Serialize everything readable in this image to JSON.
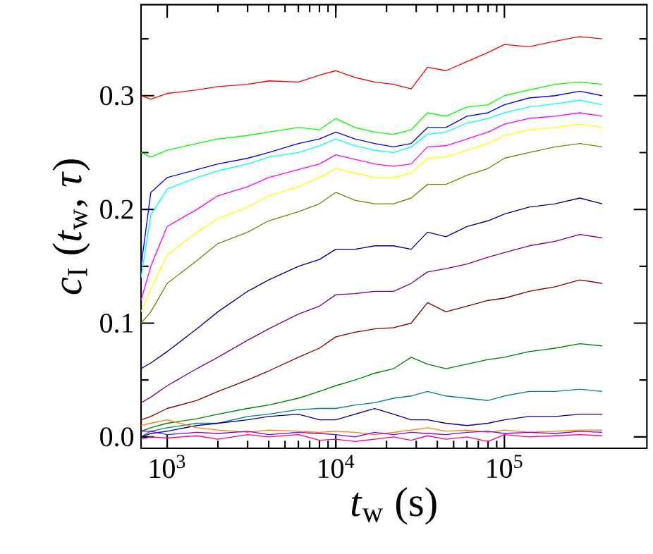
{
  "chart_data": {
    "type": "line",
    "xlabel": "*t*$_{w}$ (s)",
    "ylabel": "*c*$_{I}$ (*t*$_{w}$, *τ*)",
    "log": "x",
    "xlim": [
      700,
      700000
    ],
    "ylim": [
      -0.01,
      0.38
    ],
    "xticks": [
      {
        "value": 1000,
        "label": "10$^{3}$"
      },
      {
        "value": 10000,
        "label": "10$^{4}$"
      },
      {
        "value": 100000,
        "label": "10$^{5}$"
      }
    ],
    "yticks": [
      {
        "value": 0,
        "label": "0.0"
      },
      {
        "value": 0.05,
        "label": null
      },
      0.1,
      {
        "value": 0.15,
        "label": null
      },
      0.2,
      {
        "value": 0.25,
        "label": null
      },
      0.3,
      {
        "value": 0.35,
        "label": null
      }
    ],
    "x": [
      700,
      800,
      1000,
      1500,
      2000,
      3000,
      4000,
      6000,
      8000,
      10000,
      13000,
      17000,
      22000,
      28000,
      35000,
      45000,
      60000,
      80000,
      100000,
      140000,
      200000,
      280000,
      380000
    ],
    "series": [
      {
        "color": "#ff0000",
        "values": [
          0.3,
          0.297,
          0.302,
          0.305,
          0.308,
          0.31,
          0.313,
          0.312,
          0.318,
          0.322,
          0.316,
          0.312,
          0.31,
          0.306,
          0.325,
          0.322,
          0.33,
          0.338,
          0.345,
          0.343,
          0.348,
          0.352,
          0.35
        ]
      },
      {
        "color": "#00ff00",
        "values": [
          0.25,
          0.246,
          0.252,
          0.258,
          0.262,
          0.265,
          0.268,
          0.272,
          0.27,
          0.28,
          0.272,
          0.268,
          0.266,
          0.27,
          0.285,
          0.282,
          0.29,
          0.292,
          0.3,
          0.305,
          0.31,
          0.312,
          0.31
        ]
      },
      {
        "color": "#0000ff",
        "values": [
          0.15,
          0.215,
          0.228,
          0.235,
          0.24,
          0.245,
          0.25,
          0.258,
          0.262,
          0.268,
          0.262,
          0.258,
          0.255,
          0.258,
          0.272,
          0.272,
          0.282,
          0.285,
          0.292,
          0.298,
          0.3,
          0.304,
          0.3
        ]
      },
      {
        "color": "#00ffff",
        "values": [
          0.14,
          0.195,
          0.218,
          0.228,
          0.234,
          0.24,
          0.246,
          0.25,
          0.256,
          0.262,
          0.256,
          0.252,
          0.25,
          0.255,
          0.266,
          0.268,
          0.276,
          0.28,
          0.285,
          0.29,
          0.293,
          0.296,
          0.292
        ]
      },
      {
        "color": "#ff00ff",
        "values": [
          0.12,
          0.15,
          0.185,
          0.2,
          0.212,
          0.22,
          0.228,
          0.235,
          0.24,
          0.248,
          0.244,
          0.24,
          0.238,
          0.24,
          0.255,
          0.256,
          0.262,
          0.268,
          0.275,
          0.28,
          0.282,
          0.285,
          0.282
        ]
      },
      {
        "color": "#ffff00",
        "values": [
          0.11,
          0.13,
          0.16,
          0.18,
          0.192,
          0.202,
          0.212,
          0.22,
          0.228,
          0.236,
          0.232,
          0.228,
          0.228,
          0.232,
          0.245,
          0.246,
          0.252,
          0.258,
          0.265,
          0.27,
          0.272,
          0.275,
          0.272
        ]
      },
      {
        "color": "#808000",
        "values": [
          0.1,
          0.11,
          0.135,
          0.155,
          0.17,
          0.18,
          0.19,
          0.198,
          0.205,
          0.215,
          0.208,
          0.205,
          0.205,
          0.21,
          0.222,
          0.222,
          0.23,
          0.236,
          0.245,
          0.25,
          0.255,
          0.258,
          0.255
        ]
      },
      {
        "color": "#000080",
        "values": [
          0.06,
          0.065,
          0.075,
          0.095,
          0.11,
          0.128,
          0.138,
          0.15,
          0.156,
          0.165,
          0.165,
          0.168,
          0.168,
          0.165,
          0.18,
          0.176,
          0.185,
          0.19,
          0.196,
          0.202,
          0.205,
          0.21,
          0.205
        ]
      },
      {
        "color": "#800080",
        "values": [
          0.03,
          0.035,
          0.045,
          0.06,
          0.07,
          0.085,
          0.095,
          0.108,
          0.115,
          0.125,
          0.126,
          0.128,
          0.128,
          0.135,
          0.145,
          0.148,
          0.152,
          0.158,
          0.162,
          0.168,
          0.172,
          0.178,
          0.175
        ]
      },
      {
        "color": "#800000",
        "values": [
          0.015,
          0.018,
          0.025,
          0.032,
          0.04,
          0.05,
          0.058,
          0.07,
          0.078,
          0.088,
          0.092,
          0.095,
          0.096,
          0.1,
          0.118,
          0.11,
          0.115,
          0.12,
          0.122,
          0.128,
          0.132,
          0.138,
          0.135
        ]
      },
      {
        "color": "#008000",
        "values": [
          0.005,
          0.008,
          0.012,
          0.016,
          0.02,
          0.025,
          0.028,
          0.034,
          0.04,
          0.045,
          0.05,
          0.056,
          0.06,
          0.07,
          0.064,
          0.06,
          0.064,
          0.068,
          0.07,
          0.075,
          0.078,
          0.082,
          0.08
        ]
      },
      {
        "color": "#008080",
        "values": [
          0.0,
          0.005,
          0.008,
          0.012,
          0.012,
          0.018,
          0.02,
          0.024,
          0.025,
          0.025,
          0.028,
          0.03,
          0.034,
          0.036,
          0.04,
          0.036,
          0.034,
          0.032,
          0.036,
          0.04,
          0.04,
          0.042,
          0.04
        ]
      },
      {
        "color": "#0000a0",
        "values": [
          0.0,
          0.003,
          0.005,
          0.01,
          0.012,
          0.015,
          0.018,
          0.02,
          0.015,
          0.015,
          0.02,
          0.025,
          0.02,
          0.015,
          0.015,
          0.012,
          0.01,
          0.012,
          0.015,
          0.018,
          0.018,
          0.02,
          0.02
        ]
      },
      {
        "color": "#ff8000",
        "values": [
          0.01,
          0.012,
          0.015,
          0.008,
          0.006,
          0.004,
          0.006,
          0.005,
          0.004,
          0.005,
          0.004,
          0.002,
          0.004,
          0.006,
          0.008,
          0.005,
          0.006,
          0.004,
          0.006,
          0.004,
          0.005,
          0.006,
          0.006
        ]
      },
      {
        "color": "#8000ff",
        "values": [
          0.005,
          0.005,
          0.002,
          0.004,
          0.003,
          0.005,
          0.002,
          0.004,
          0.003,
          0.002,
          0.0,
          0.004,
          0.002,
          0.004,
          0.003,
          0.002,
          0.004,
          0.005,
          0.003,
          0.004,
          0.003,
          0.005,
          0.004
        ]
      },
      {
        "color": "#ff0080",
        "values": [
          -0.002,
          0.0,
          -0.001,
          0.001,
          -0.002,
          0.002,
          0.0,
          0.002,
          -0.003,
          -0.002,
          -0.004,
          -0.002,
          0.0,
          -0.003,
          0.001,
          -0.002,
          0.0,
          -0.004,
          0.002,
          0.0,
          0.001,
          0.002,
          0.001
        ]
      }
    ]
  }
}
